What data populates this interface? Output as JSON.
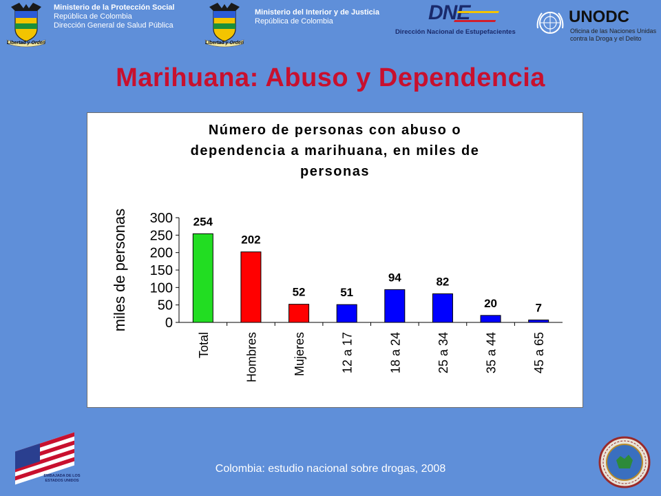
{
  "header": {
    "left": {
      "line1": "Ministerio de la Protección Social",
      "line2": "República de Colombia",
      "line3": "Dirección General de Salud Pública",
      "seal_motto": "Libertad y Orden"
    },
    "middle": {
      "line1": "Ministerio del Interior y de Justicia",
      "line2": "República de Colombia",
      "seal_motto": "Libertad y Orden"
    },
    "dne": {
      "logo": "DNE",
      "caption": "Dirección Nacional de Estupefacientes"
    },
    "unodc": {
      "logo": "UNODC",
      "line1": "Oficina de las Naciones Unidas",
      "line2": "contra la Droga y el Delito"
    }
  },
  "page_title": "Marihuana: Abuso y Dependencia",
  "chart_data": {
    "type": "bar",
    "title_lines": [
      "Número de personas con abuso o",
      "dependencia a marihuana, en miles de",
      "personas"
    ],
    "ylabel": "miles de personas",
    "xlabel": "",
    "ylim": [
      0,
      300
    ],
    "yticks": [
      "300",
      "250",
      "200",
      "150",
      "100",
      "50",
      "0"
    ],
    "ytick_values": [
      300,
      250,
      200,
      150,
      100,
      50,
      0
    ],
    "categories": [
      "Total",
      "Hombres",
      "Mujeres",
      "12 a 17",
      "18 a 24",
      "25 a 34",
      "35 a 44",
      "45 a 65"
    ],
    "values": [
      254,
      202,
      52,
      51,
      94,
      82,
      20,
      7
    ],
    "data_labels": [
      "254",
      "202",
      "52",
      "51",
      "94",
      "82",
      "20",
      "7"
    ],
    "colors": [
      "#22dd22",
      "#ff0000",
      "#ff0000",
      "#0000ff",
      "#0000ff",
      "#0000ff",
      "#0000ff",
      "#0000ff"
    ],
    "grid": false,
    "legend": "none"
  },
  "footer": {
    "source": "Colombia: estudio nacional sobre drogas, 2008",
    "left_logo": {
      "line1": "EMBAJADA DE LOS",
      "line2": "ESTADOS UNIDOS"
    },
    "right_logo": "oas-seal"
  }
}
